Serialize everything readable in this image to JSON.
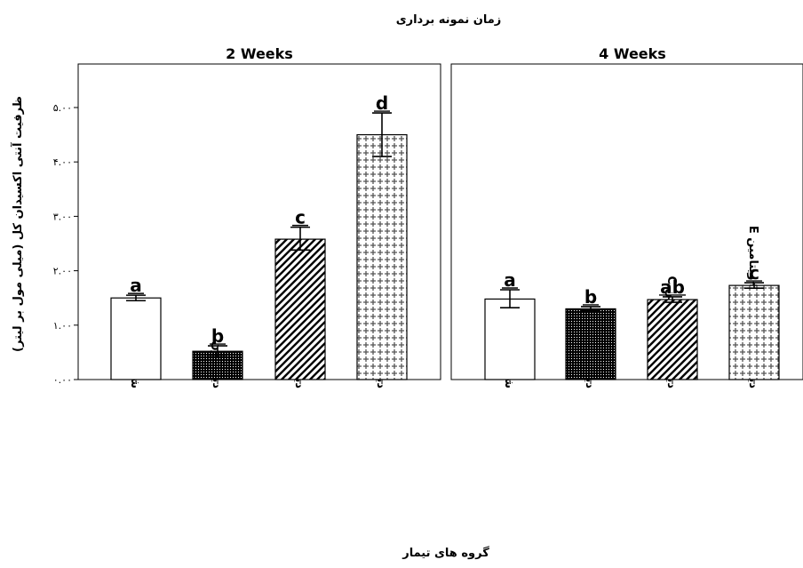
{
  "chart_data": {
    "type": "bar",
    "title": "زمان نمونه برداری",
    "ylabel": "ظرفیت آنتی اکسیدان کل (میلی مول بر لیتر)",
    "xlabel": "گروه های تیمار",
    "ylim": [
      0,
      5.8
    ],
    "yticks": [
      0,
      1,
      2,
      3,
      4,
      5
    ],
    "ytick_labels": [
      "۰.۰۰",
      "۱.۰۰",
      "۲.۰۰",
      "۳.۰۰",
      "۴.۰۰",
      "۵.۰۰"
    ],
    "categories": [
      "شاهد",
      "دیازینون",
      "دیازینون+ویتامین C",
      "دیازینون+سلنیوم+ویتامین E"
    ],
    "patterns": [
      "none",
      "dense-dots",
      "diagonal",
      "crosses"
    ],
    "panels": [
      {
        "label": "2 Weeks",
        "values": [
          1.5,
          0.52,
          2.58,
          4.5
        ],
        "error_high": [
          1.55,
          0.62,
          2.8,
          4.9
        ],
        "error_low": [
          1.45,
          0.42,
          2.38,
          4.1
        ],
        "letters": [
          "a",
          "b",
          "c",
          "d"
        ]
      },
      {
        "label": "4 Weeks",
        "values": [
          1.48,
          1.3,
          1.47,
          1.73
        ],
        "error_high": [
          1.65,
          1.34,
          1.52,
          1.78
        ],
        "error_low": [
          1.32,
          1.27,
          1.42,
          1.68
        ],
        "letters": [
          "a",
          "b",
          "ab",
          "c"
        ]
      }
    ]
  }
}
